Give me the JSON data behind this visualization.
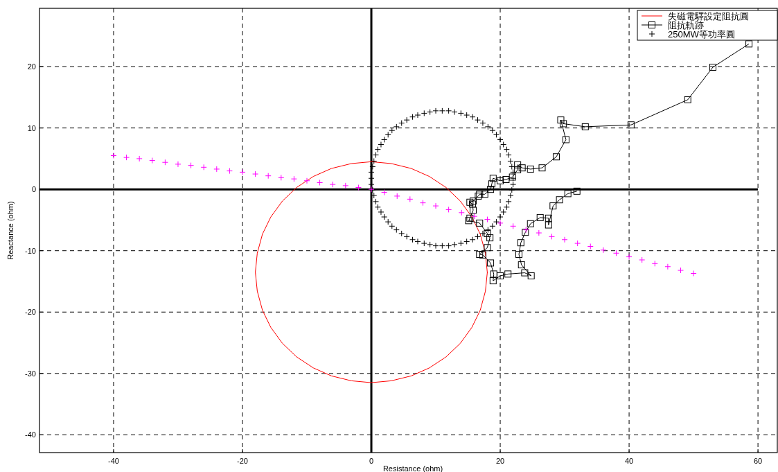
{
  "chart_data": {
    "type": "line",
    "xlabel": "Resistance (ohm)",
    "ylabel": "Reactance (ohm)",
    "xlim": [
      -51.5,
      63
    ],
    "ylim": [
      -42.9,
      29.5
    ],
    "xticks": [
      -40,
      -20,
      0,
      20,
      40,
      60
    ],
    "yticks": [
      -40,
      -30,
      -20,
      -10,
      0,
      10,
      20
    ],
    "grid": true,
    "legend": "top right",
    "ref_lines": [
      {
        "axis": "x",
        "value": 0,
        "color": "#000000"
      }
    ],
    "series": [
      {
        "x": [
          -51.5,
          60
        ],
        "values": [
          0,
          0
        ],
        "color": "#000000",
        "marker": "none"
      },
      {
        "name": "失磁電驛設定阻抗圓",
        "type": "line",
        "marker": "none",
        "color": "#ff0000",
        "x": [
          18.0,
          17.7,
          16.9,
          15.6,
          13.8,
          11.6,
          9.0,
          6.2,
          3.1,
          0,
          -3.1,
          -6.2,
          -9.0,
          -11.6,
          -13.8,
          -15.6,
          -16.9,
          -17.7,
          -18.0,
          -17.7,
          -16.9,
          -15.6,
          -13.8,
          -11.6,
          -9.0,
          -6.2,
          -3.1,
          0,
          3.1,
          6.2,
          9.0,
          11.6,
          13.8,
          15.6,
          16.9,
          17.7,
          18.0
        ],
        "values": [
          -13.6,
          -10.4,
          -7.3,
          -4.5,
          -1.9,
          0.3,
          2.1,
          3.4,
          4.2,
          4.5,
          4.2,
          3.4,
          2.1,
          0.3,
          -1.9,
          -4.5,
          -7.3,
          -10.4,
          -13.5,
          -16.6,
          -19.7,
          -22.5,
          -25.1,
          -27.3,
          -29.1,
          -30.4,
          -31.2,
          -31.5,
          -31.2,
          -30.4,
          -29.1,
          -27.3,
          -25.1,
          -22.5,
          -19.7,
          -16.6,
          -13.5
        ]
      },
      {
        "name": "阻抗軌跡",
        "type": "line",
        "marker": "square",
        "color": "#000000",
        "x": [
          58.6,
          53.0,
          49.1,
          40.3,
          33.2,
          29.8,
          29.4,
          30.2,
          28.7,
          26.5,
          24.7,
          23.4,
          22.7,
          22.7,
          21.9,
          20.9,
          20.0,
          18.9,
          18.7,
          18.5,
          17.6,
          16.8,
          16.6,
          15.8,
          15.3,
          15.7,
          15.8,
          15.3,
          15.1,
          16.8,
          18.0,
          18.4,
          18.0,
          16.8,
          17.3,
          18.5,
          19.0,
          18.9,
          20.0,
          21.2,
          23.8,
          24.8,
          23.3,
          22.9,
          23.2,
          23.9,
          24.7,
          26.2,
          27.5,
          27.5,
          28.2,
          29.2,
          30.5,
          31.9
        ],
        "values": [
          23.7,
          19.9,
          14.6,
          10.5,
          10.2,
          10.7,
          11.3,
          8.1,
          5.3,
          3.5,
          3.3,
          3.5,
          4.0,
          3.2,
          2.0,
          1.6,
          1.4,
          1.8,
          0.9,
          0.0,
          -0.8,
          -0.8,
          -1.1,
          -1.9,
          -2.1,
          -2.4,
          -3.4,
          -4.7,
          -5.1,
          -5.5,
          -7.2,
          -7.9,
          -9.5,
          -10.6,
          -10.7,
          -12.0,
          -13.8,
          -14.9,
          -14.1,
          -13.8,
          -13.6,
          -14.1,
          -12.3,
          -10.6,
          -8.7,
          -7.0,
          -5.6,
          -4.6,
          -4.7,
          -5.8,
          -2.7,
          -1.7,
          -0.7,
          -0.3
        ]
      },
      {
        "name": "250MW等功率圓",
        "type": "scatter",
        "marker": "cross",
        "color": "#000000",
        "x": [
          22.0,
          22.0,
          21.8,
          21.6,
          21.3,
          21.0,
          20.5,
          20.0,
          19.4,
          18.8,
          18.1,
          17.3,
          16.5,
          15.7,
          14.8,
          13.9,
          12.9,
          12.0,
          11.0,
          10.0,
          9.1,
          8.2,
          7.2,
          6.4,
          5.5,
          4.7,
          3.9,
          3.2,
          2.6,
          2.0,
          1.5,
          1.0,
          0.7,
          0.4,
          0.2,
          0.0,
          0.0,
          0.0,
          0.2,
          0.4,
          0.7,
          1.0,
          1.5,
          2.0,
          2.6,
          3.2,
          3.9,
          4.7,
          5.5,
          6.4,
          7.2,
          8.2,
          9.1,
          10.0,
          11.0,
          12.0,
          12.9,
          13.9,
          14.8,
          15.7,
          16.5,
          17.3,
          18.1,
          18.8,
          19.4,
          20.0,
          20.5,
          21.0,
          21.3,
          21.6,
          21.8,
          22.0
        ],
        "values": [
          1.8,
          2.8,
          3.7,
          4.6,
          5.6,
          6.5,
          7.3,
          8.1,
          8.9,
          9.6,
          10.2,
          10.8,
          11.3,
          11.8,
          12.1,
          12.4,
          12.6,
          12.8,
          12.8,
          12.8,
          12.6,
          12.4,
          12.1,
          11.8,
          11.3,
          10.8,
          10.2,
          9.6,
          8.9,
          8.1,
          7.3,
          6.5,
          5.6,
          4.6,
          3.7,
          2.8,
          1.8,
          0.8,
          -0.1,
          -1.0,
          -2.0,
          -2.9,
          -3.7,
          -4.5,
          -5.3,
          -6.0,
          -6.6,
          -7.2,
          -7.7,
          -8.2,
          -8.5,
          -8.8,
          -9.0,
          -9.2,
          -9.2,
          -9.2,
          -9.0,
          -8.8,
          -8.5,
          -8.2,
          -7.7,
          -7.2,
          -6.6,
          -6.0,
          -5.3,
          -4.5,
          -3.7,
          -2.9,
          -2.0,
          -1.0,
          -0.1,
          0.8
        ]
      },
      {
        "type": "scatter",
        "marker": "cross",
        "color": "#ff00ff",
        "x": [
          -40,
          -38,
          -36,
          -34,
          -32,
          -30,
          -28,
          -26,
          -24,
          -22,
          -20,
          -18,
          -16,
          -14,
          -12,
          -10,
          -8,
          -6,
          -4,
          -2,
          0,
          2,
          4,
          6,
          8,
          10,
          12,
          14,
          16,
          18,
          20,
          22,
          24,
          26,
          28,
          30,
          32,
          34,
          36,
          38,
          40,
          42,
          44,
          46,
          48,
          50
        ],
        "values": [
          5.5,
          5.2,
          5.0,
          4.7,
          4.4,
          4.1,
          3.9,
          3.6,
          3.3,
          3.0,
          2.8,
          2.5,
          2.2,
          1.9,
          1.7,
          1.4,
          1.1,
          0.8,
          0.6,
          0.3,
          0,
          -0.5,
          -1.1,
          -1.6,
          -2.2,
          -2.7,
          -3.3,
          -3.8,
          -4.4,
          -4.9,
          -5.5,
          -6.0,
          -6.6,
          -7.1,
          -7.7,
          -8.2,
          -8.8,
          -9.3,
          -9.9,
          -10.4,
          -11.0,
          -11.5,
          -12.1,
          -12.6,
          -13.2,
          -13.7
        ]
      }
    ]
  }
}
